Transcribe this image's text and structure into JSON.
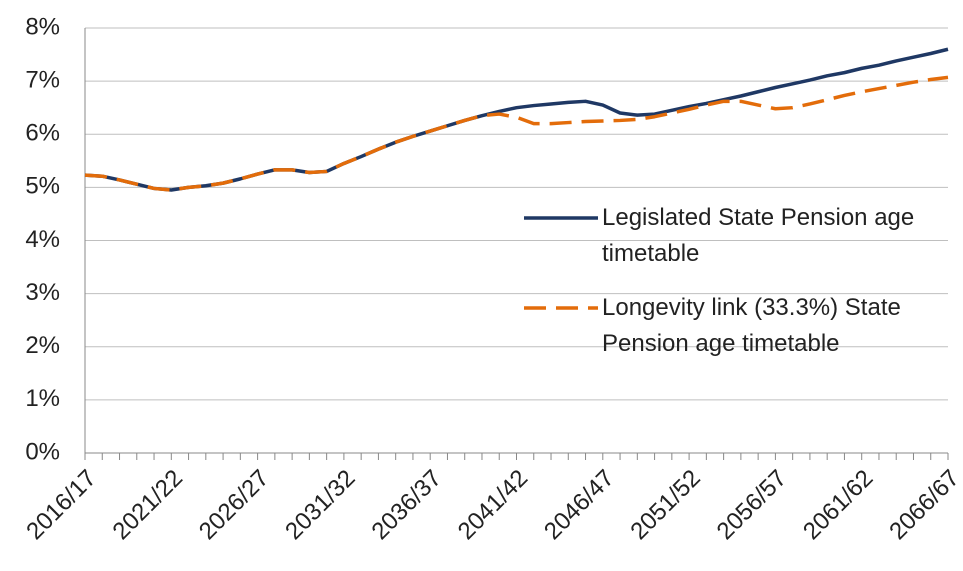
{
  "chart_data": {
    "type": "line",
    "categories": [
      "2016/17",
      null,
      null,
      null,
      null,
      "2021/22",
      null,
      null,
      null,
      null,
      "2026/27",
      null,
      null,
      null,
      null,
      "2031/32",
      null,
      null,
      null,
      null,
      "2036/37",
      null,
      null,
      null,
      null,
      "2041/42",
      null,
      null,
      null,
      null,
      "2046/47",
      null,
      null,
      null,
      null,
      "2051/52",
      null,
      null,
      null,
      null,
      "2056/57",
      null,
      null,
      null,
      null,
      "2061/62",
      null,
      null,
      null,
      null,
      "2066/67"
    ],
    "series": [
      {
        "name": "Legislated State Pension age timetable",
        "color": "#1f3864",
        "dash": false,
        "values": [
          5.23,
          5.21,
          5.14,
          5.06,
          4.98,
          4.95,
          5.0,
          5.03,
          5.08,
          5.16,
          5.25,
          5.33,
          5.33,
          5.28,
          5.3,
          5.45,
          5.58,
          5.72,
          5.85,
          5.96,
          6.06,
          6.16,
          6.26,
          6.35,
          6.43,
          6.5,
          6.54,
          6.57,
          6.6,
          6.62,
          6.55,
          6.4,
          6.36,
          6.38,
          6.45,
          6.52,
          6.58,
          6.65,
          6.72,
          6.8,
          6.88,
          6.95,
          7.02,
          7.1,
          7.16,
          7.24,
          7.3,
          7.38,
          7.45,
          7.52,
          7.6
        ]
      },
      {
        "name": "Longevity link (33.3%) State Pension age timetable",
        "color": "#e36c0a",
        "dash": true,
        "values": [
          5.23,
          5.21,
          5.14,
          5.06,
          4.98,
          4.95,
          5.0,
          5.03,
          5.08,
          5.16,
          5.25,
          5.33,
          5.33,
          5.28,
          5.3,
          5.45,
          5.58,
          5.72,
          5.85,
          5.96,
          6.06,
          6.16,
          6.26,
          6.35,
          6.38,
          6.32,
          6.2,
          6.2,
          6.22,
          6.24,
          6.25,
          6.26,
          6.28,
          6.33,
          6.4,
          6.47,
          6.55,
          6.62,
          6.62,
          6.55,
          6.48,
          6.5,
          6.57,
          6.65,
          6.73,
          6.8,
          6.86,
          6.92,
          6.98,
          7.03,
          7.07
        ]
      }
    ],
    "ylim": [
      0,
      8
    ],
    "yticks": [
      {
        "value": 0,
        "label": "0%"
      },
      {
        "value": 1,
        "label": "1%"
      },
      {
        "value": 2,
        "label": "2%"
      },
      {
        "value": 3,
        "label": "3%"
      },
      {
        "value": 4,
        "label": "4%"
      },
      {
        "value": 5,
        "label": "5%"
      },
      {
        "value": 6,
        "label": "6%"
      },
      {
        "value": 7,
        "label": "7%"
      },
      {
        "value": 8,
        "label": "8%"
      }
    ],
    "grid": true
  }
}
